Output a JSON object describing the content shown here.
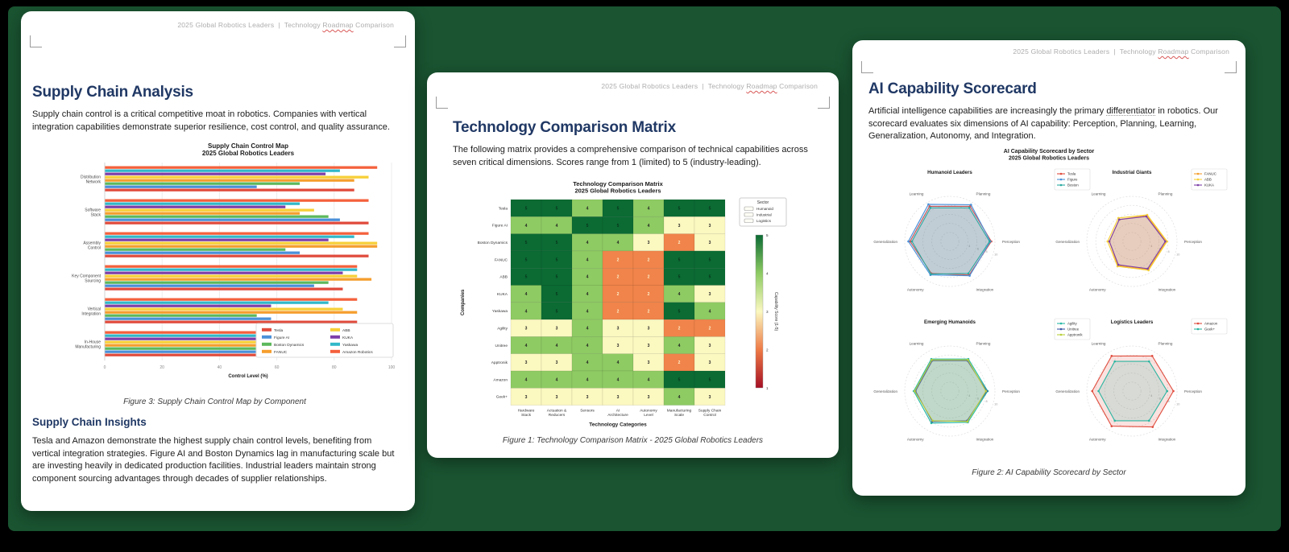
{
  "header": {
    "part_a": "2025 Global Robotics Leaders  |  Technology ",
    "roadmap": "Roadmap",
    "part_b": " Comparison"
  },
  "pages": {
    "supply": {
      "title": "Supply Chain Analysis",
      "intro": "Supply chain control is a critical competitive moat in robotics. Companies with vertical integration capabilities demonstrate superior resilience, cost control, and quality assurance.",
      "caption": "Figure 3: Supply Chain Control Map by Component",
      "insights_title": "Supply Chain Insights",
      "insights_text": "Tesla and Amazon demonstrate the highest supply chain control levels, benefiting from vertical integration strategies. Figure AI and Boston Dynamics lag in manufacturing scale but are investing heavily in dedicated production facilities. Industrial leaders maintain strong component sourcing advantages through decades of supplier relationships."
    },
    "matrix": {
      "title": "Technology Comparison Matrix",
      "intro": "The following matrix provides a comprehensive comparison of technical capabilities across seven critical dimensions. Scores range from 1 (limited) to 5 (industry-leading).",
      "caption": "Figure 1: Technology Comparison Matrix - 2025 Global Robotics Leaders"
    },
    "scorecard": {
      "title": "AI Capability Scorecard",
      "intro_a": "Artificial intelligence capabilities are increasingly the primary ",
      "intro_word": "differentiator",
      "intro_b": " in robotics. Our scorecard evaluates six dimensions of AI capability: Perception, Planning, Learning, Generalization, Autonomy, and Integration.",
      "caption": "Figure 2: AI Capability Scorecard by Sector"
    }
  },
  "chart_data": [
    {
      "type": "bar",
      "orientation": "horizontal",
      "title": "Supply Chain Control Map\n2025 Global Robotics Leaders",
      "xlabel": "Control Level (%)",
      "xlim": [
        0,
        100
      ],
      "xticks": [
        0,
        20,
        40,
        60,
        80,
        100
      ],
      "categories": [
        "Distribution\nNetwork",
        "Software\nStack",
        "Assembly\nControl",
        "Key Component\nSourcing",
        "Vertical\nIntegration",
        "In-House\nManufacturing"
      ],
      "series": [
        {
          "name": "Tesla",
          "color": "#e04b3c",
          "values": [
            87,
            92,
            92,
            83,
            88,
            78
          ]
        },
        {
          "name": "Figure AI",
          "color": "#4a90d9",
          "values": [
            53,
            82,
            68,
            73,
            58,
            68
          ]
        },
        {
          "name": "Boston Dynamics",
          "color": "#5cb85c",
          "values": [
            68,
            78,
            63,
            78,
            53,
            58
          ]
        },
        {
          "name": "FANUC",
          "color": "#f59e2c",
          "values": [
            87,
            68,
            95,
            93,
            88,
            95
          ]
        },
        {
          "name": "ABB",
          "color": "#f7d038",
          "values": [
            92,
            73,
            95,
            88,
            83,
            95
          ]
        },
        {
          "name": "KUKA",
          "color": "#7d3fa8",
          "values": [
            77,
            63,
            78,
            83,
            58,
            73
          ]
        },
        {
          "name": "Yaskawa",
          "color": "#31b8c9",
          "values": [
            82,
            68,
            87,
            88,
            78,
            88
          ]
        },
        {
          "name": "Amazon Robotics",
          "color": "#f4603c",
          "values": [
            95,
            92,
            92,
            88,
            88,
            93
          ]
        }
      ]
    },
    {
      "type": "heatmap",
      "title": "Technology Comparison Matrix\n2025 Global Robotics Leaders",
      "xlabel": "Technology Categories",
      "ylabel": "Companies",
      "colorbar_label": "Capability Score (1-5)",
      "colorbar_ticks": [
        5,
        4,
        3,
        2,
        1
      ],
      "legend": {
        "title": "Sector",
        "items": [
          "Humanoid",
          "Industrial",
          "Logistics"
        ]
      },
      "columns": [
        "Hardware\nStack",
        "Actuation &\nReducers",
        "Sensors",
        "AI\nArchitecture",
        "Autonomy\nLevel",
        "Manufacturing\nScale",
        "Supply Chain\nControl"
      ],
      "rows": [
        "Tesla",
        "Figure AI",
        "Boston Dynamics",
        "FANUC",
        "ABB",
        "KUKA",
        "Yaskawa",
        "Agility",
        "Unitree",
        "Apptronik",
        "Amazon",
        "Geek+"
      ],
      "values": [
        [
          5,
          5,
          4,
          5,
          4,
          5,
          5
        ],
        [
          4,
          4,
          5,
          5,
          4,
          3,
          3
        ],
        [
          5,
          5,
          4,
          4,
          3,
          2,
          3
        ],
        [
          5,
          5,
          4,
          2,
          2,
          5,
          5
        ],
        [
          5,
          5,
          4,
          2,
          2,
          5,
          5
        ],
        [
          4,
          5,
          4,
          2,
          2,
          4,
          3
        ],
        [
          4,
          5,
          4,
          2,
          2,
          5,
          4
        ],
        [
          3,
          3,
          4,
          3,
          3,
          2,
          2
        ],
        [
          4,
          4,
          4,
          3,
          3,
          4,
          3
        ],
        [
          3,
          3,
          4,
          4,
          3,
          2,
          3
        ],
        [
          4,
          4,
          4,
          4,
          4,
          5,
          5
        ],
        [
          3,
          3,
          3,
          3,
          3,
          4,
          3
        ]
      ],
      "scale": {
        "5": "#0b6b33",
        "4": "#8ecb63",
        "3": "#fbf8c0",
        "2": "#f0844a",
        "1": "#a50f24"
      }
    },
    {
      "type": "radar",
      "title": "AI Capability Scorecard by Sector\n2025 Global Robotics Leaders",
      "axes": [
        "Perception",
        "Planning",
        "Learning",
        "Generalization",
        "Autonomy",
        "Integration"
      ],
      "rmax": 10,
      "rticks": [
        2,
        4,
        6,
        8,
        10
      ],
      "subplots": [
        {
          "title": "Humanoid Leaders",
          "series": [
            {
              "name": "Tesla",
              "color": "#e04b3c",
              "values": [
                9.2,
                9.0,
                9.0,
                8.8,
                8.2,
                8.6
              ]
            },
            {
              "name": "Figure",
              "color": "#4a90d9",
              "values": [
                9.0,
                9.4,
                9.5,
                9.2,
                8.6,
                8.8
              ]
            },
            {
              "name": "Boston",
              "color": "#2aa9a0",
              "values": [
                8.8,
                8.6,
                8.6,
                8.4,
                8.4,
                8.2
              ]
            }
          ]
        },
        {
          "title": "Industrial Giants",
          "series": [
            {
              "name": "FANUC",
              "color": "#f59e2c",
              "values": [
                7.6,
                6.6,
                5.6,
                5.0,
                6.2,
                7.2
              ]
            },
            {
              "name": "ABB",
              "color": "#f7d038",
              "values": [
                7.8,
                6.8,
                6.0,
                5.4,
                6.4,
                7.4
              ]
            },
            {
              "name": "KUKA",
              "color": "#7d3fa8",
              "values": [
                7.4,
                6.4,
                5.6,
                5.0,
                6.0,
                7.0
              ]
            }
          ]
        },
        {
          "title": "Emerging Humanoids",
          "series": [
            {
              "name": "Agility",
              "color": "#26b8a5",
              "values": [
                8.4,
                8.2,
                8.2,
                8.0,
                8.2,
                8.0
              ]
            },
            {
              "name": "Unitree",
              "color": "#3b55a5",
              "values": [
                8.2,
                7.8,
                7.8,
                7.6,
                7.8,
                7.6
              ]
            },
            {
              "name": "Apptronik",
              "color": "#b9cf3a",
              "values": [
                8.0,
                8.0,
                8.0,
                7.8,
                7.6,
                7.8
              ]
            }
          ]
        },
        {
          "title": "Logistics Leaders",
          "series": [
            {
              "name": "Amazon",
              "color": "#e04b3c",
              "values": [
                9.2,
                9.0,
                9.0,
                8.8,
                9.0,
                9.2
              ]
            },
            {
              "name": "Geek+",
              "color": "#2ab5a0",
              "values": [
                7.8,
                7.6,
                7.6,
                7.4,
                7.6,
                7.6
              ]
            }
          ]
        }
      ]
    }
  ]
}
